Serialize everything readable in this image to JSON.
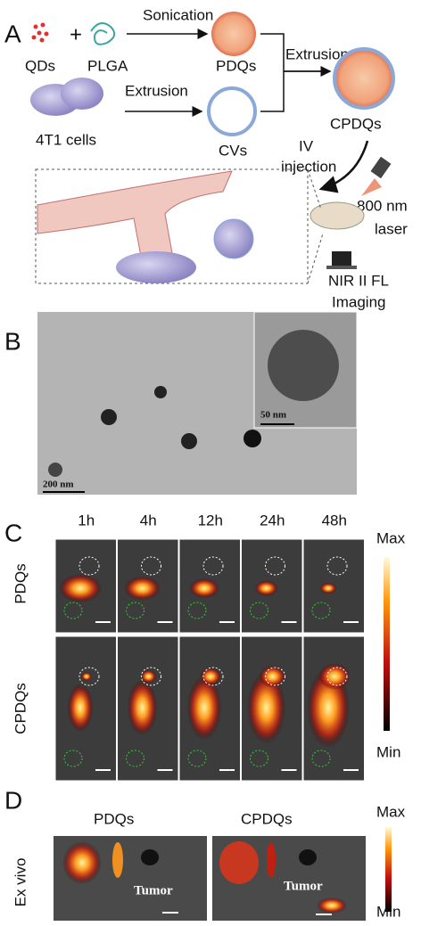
{
  "panel_a": {
    "label": "A",
    "qds": "QDs",
    "plga": "PLGA",
    "sonication": "Sonication",
    "pdqs": "PDQs",
    "extrusion_top": "Extrusion",
    "cpdqs": "CPDQs",
    "cells": "4T1 cells",
    "extrusion_bottom": "Extrusion",
    "cvs": "CVs",
    "iv_injection": [
      "IV",
      "injection"
    ],
    "laser": [
      "800 nm",
      "laser"
    ],
    "imaging": [
      "NIR II FL",
      "Imaging"
    ]
  },
  "panel_b": {
    "label": "B",
    "inset_scale": "50 nm",
    "scale": "200 nm"
  },
  "panel_c": {
    "label": "C",
    "times": [
      "1h",
      "4h",
      "12h",
      "24h",
      "48h"
    ],
    "rows": [
      "PDQs",
      "CPDQs"
    ],
    "colorbar_max": "Max",
    "colorbar_min": "Min"
  },
  "panel_d": {
    "label": "D",
    "groups": [
      "PDQs",
      "CPDQs"
    ],
    "row_label": "Ex vivo",
    "tumor_labels": [
      "Tumor",
      "Tumor"
    ],
    "colorbar_max": "Max",
    "colorbar_min": "Min"
  }
}
